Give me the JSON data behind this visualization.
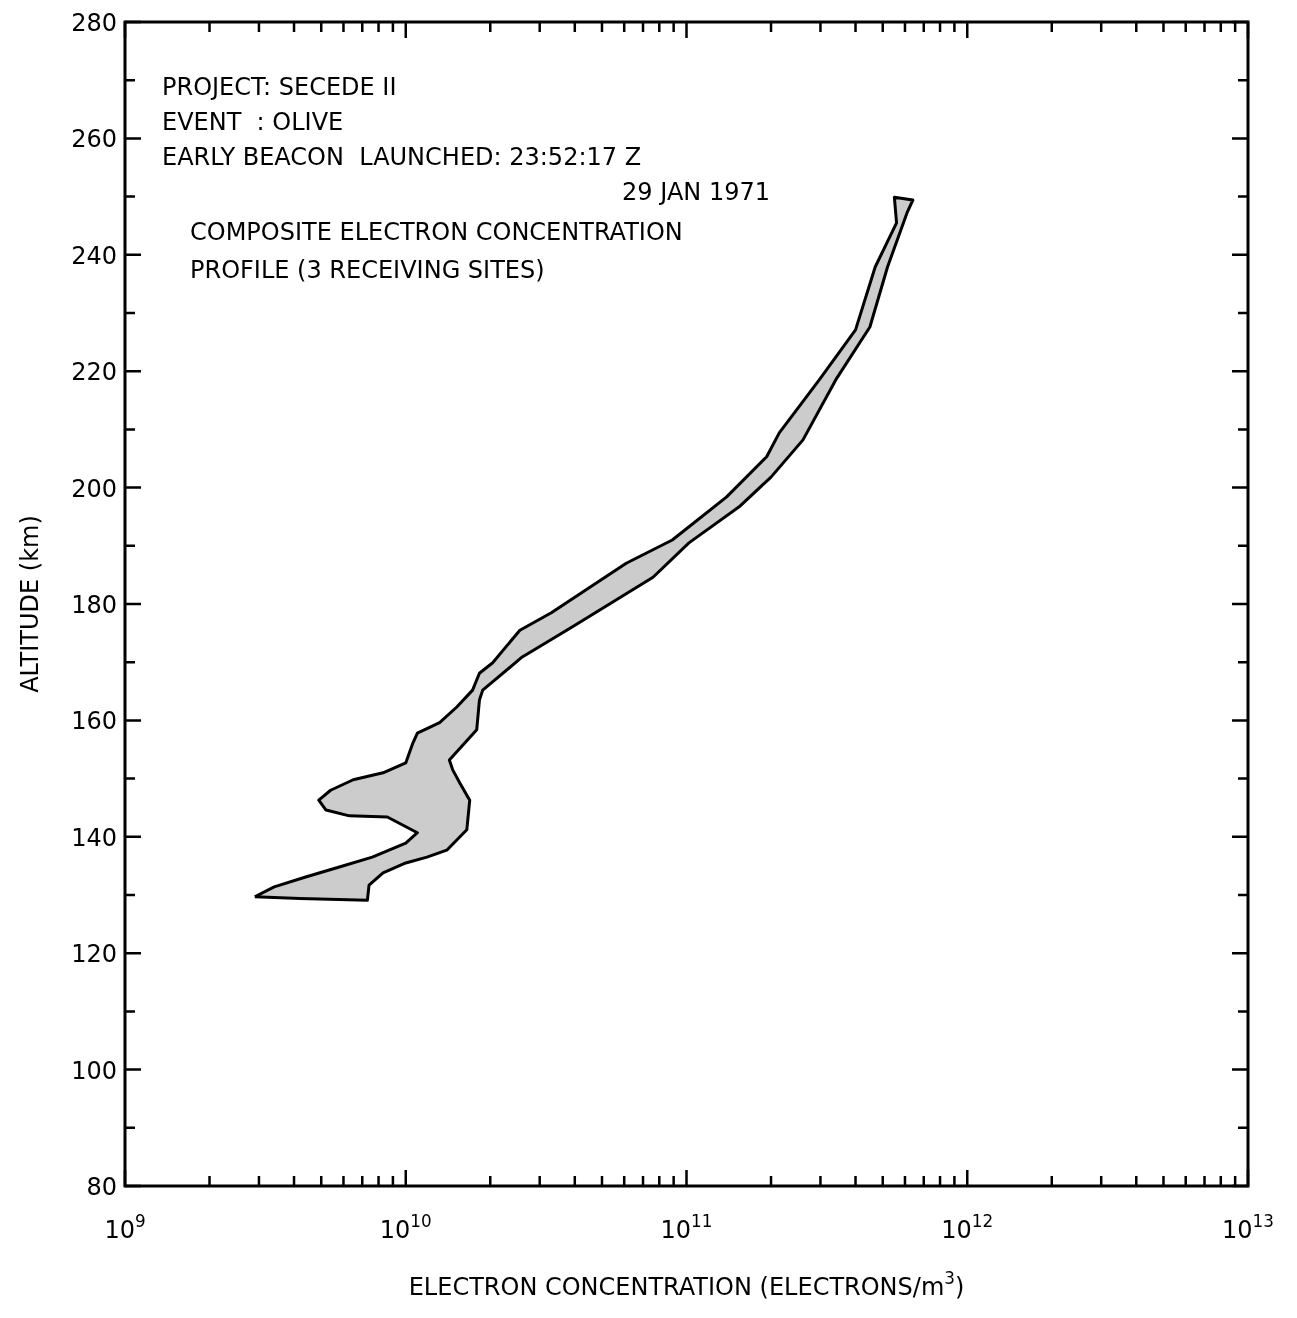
{
  "chart_data": {
    "type": "area",
    "xlabel": "ELECTRON CONCENTRATION (ELECTRONS/m$^{3}$)",
    "ylabel": "ALTITUDE (km)",
    "annotations": [
      "PROJECT: SECEDE II",
      "EVENT  : OLIVE",
      "EARLY BEACON  LAUNCHED: 23:52:17 Z",
      "29 JAN 1971",
      "COMPOSITE ELECTRON CONCENTRATION",
      "PROFILE (3 RECEIVING SITES)"
    ],
    "log": "x",
    "grid": false,
    "legend": false,
    "xlim": [
      1000000000.0,
      10000000000000.0
    ],
    "ylim": [
      80,
      280
    ],
    "xticks": [
      {
        "value": 1000000000.0,
        "label": "10$^{9}$"
      },
      {
        "value": 2000000000.0,
        "label": null
      },
      {
        "value": 3000000000.0,
        "label": null
      },
      {
        "value": 4000000000.0,
        "label": null
      },
      {
        "value": 5000000000.0,
        "label": null
      },
      {
        "value": 6000000000.0,
        "label": null
      },
      {
        "value": 7000000000.0,
        "label": null
      },
      {
        "value": 8000000000.0,
        "label": null
      },
      {
        "value": 9000000000.0,
        "label": null
      },
      {
        "value": 10000000000.0,
        "label": "10$^{10}$"
      },
      {
        "value": 20000000000.0,
        "label": null
      },
      {
        "value": 30000000000.0,
        "label": null
      },
      {
        "value": 40000000000.0,
        "label": null
      },
      {
        "value": 50000000000.0,
        "label": null
      },
      {
        "value": 60000000000.0,
        "label": null
      },
      {
        "value": 70000000000.0,
        "label": null
      },
      {
        "value": 80000000000.0,
        "label": null
      },
      {
        "value": 90000000000.0,
        "label": null
      },
      {
        "value": 100000000000.0,
        "label": "10$^{11}$"
      },
      {
        "value": 200000000000.0,
        "label": null
      },
      {
        "value": 300000000000.0,
        "label": null
      },
      {
        "value": 400000000000.0,
        "label": null
      },
      {
        "value": 500000000000.0,
        "label": null
      },
      {
        "value": 600000000000.0,
        "label": null
      },
      {
        "value": 700000000000.0,
        "label": null
      },
      {
        "value": 800000000000.0,
        "label": null
      },
      {
        "value": 900000000000.0,
        "label": null
      },
      {
        "value": 1000000000000.0,
        "label": "10$^{12}$"
      },
      {
        "value": 2000000000000.0,
        "label": null
      },
      {
        "value": 3000000000000.0,
        "label": null
      },
      {
        "value": 4000000000000.0,
        "label": null
      },
      {
        "value": 5000000000000.0,
        "label": null
      },
      {
        "value": 6000000000000.0,
        "label": null
      },
      {
        "value": 7000000000000.0,
        "label": null
      },
      {
        "value": 8000000000000.0,
        "label": null
      },
      {
        "value": 9000000000000.0,
        "label": null
      },
      {
        "value": 10000000000000.0,
        "label": "10$^{13}$"
      }
    ],
    "yticks": [
      80,
      {
        "value": 90,
        "label": null
      },
      100,
      {
        "value": 110,
        "label": null
      },
      120,
      {
        "value": 130,
        "label": null
      },
      140,
      {
        "value": 150,
        "label": null
      },
      160,
      {
        "value": 170,
        "label": null
      },
      180,
      {
        "value": 190,
        "label": null
      },
      200,
      {
        "value": 210,
        "label": null
      },
      220,
      {
        "value": 230,
        "label": null
      },
      240,
      {
        "value": 250,
        "label": null
      },
      260,
      {
        "value": 270,
        "label": null
      },
      280
    ],
    "series": [
      {
        "color": "#000000",
        "x": [
          2900000000.0,
          3400000000.0,
          4400000000.0,
          5800000000.0,
          7600000000.0,
          10000000000.0,
          11000000000.0,
          8600000000.0,
          6300000000.0,
          5200000000.0,
          4900000000.0,
          5400000000.0,
          6500000000.0,
          8300000000.0,
          10000000000.0,
          10600000000.0,
          11000000000.0,
          13200000000.0,
          15200000000.0,
          17300000000.0,
          18300000000.0,
          20400000000.0,
          25500000000.0,
          33000000000.0,
          61000000000.0,
          89000000000.0,
          139000000000.0,
          193000000000.0,
          214000000000.0,
          297000000000.0,
          400000000000.0,
          470000000000.0,
          560000000000.0,
          550000000000.0,
          640000000000.0,
          610000000000.0,
          520000000000.0,
          450000000000.0,
          340000000000.0,
          260000000000.0,
          200000000000.0,
          154000000000.0,
          102000000000.0,
          76000000000.0,
          39000000000.0,
          26000000000.0,
          18800000000.0,
          18300000000.0,
          17900000000.0,
          14300000000.0,
          14700000000.0,
          15600000000.0,
          16900000000.0,
          16500000000.0,
          14000000000.0,
          11900000000.0,
          10000000000.0,
          8300000000.0,
          7400000000.0,
          7300000000.0,
          4200000000.0,
          2900000000.0
        ],
        "values": [
          129.7,
          131.4,
          133.1,
          134.8,
          136.5,
          138.9,
          140.7,
          143.4,
          143.6,
          144.6,
          146.3,
          148,
          149.8,
          151,
          152.7,
          156.1,
          157.8,
          159.6,
          162.3,
          165.2,
          168.1,
          169.9,
          175.5,
          178.5,
          187,
          191,
          198.4,
          205.3,
          209.4,
          218.5,
          227.1,
          237.9,
          245.5,
          249.9,
          249.4,
          247.2,
          237.9,
          227.6,
          218.5,
          208.2,
          201.8,
          196.7,
          190.5,
          184.6,
          176,
          170.9,
          165.2,
          163.5,
          158.4,
          153.2,
          151.5,
          149.2,
          146.3,
          141.2,
          137.7,
          136.5,
          135.5,
          133.8,
          131.7,
          129.1,
          129.4,
          129.7
        ]
      }
    ]
  }
}
